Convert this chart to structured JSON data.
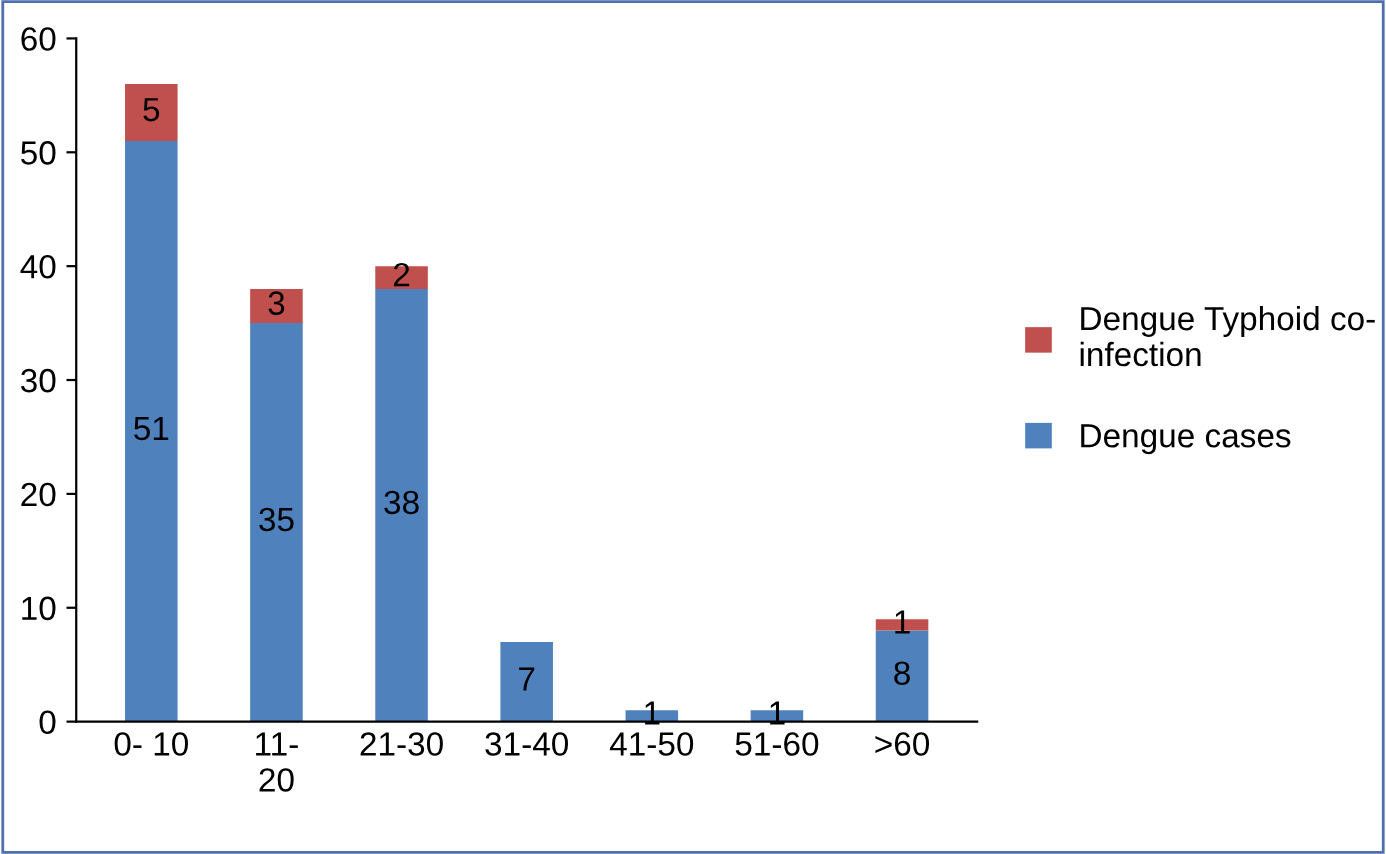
{
  "chart_data": {
    "type": "bar",
    "stacked": true,
    "categories": [
      "0- 10",
      "11-\n20",
      "21-30",
      "31-40",
      "41-50",
      "51-60",
      ">60"
    ],
    "series": [
      {
        "name": "Dengue cases",
        "color": "#4f81bd",
        "values": [
          51,
          35,
          38,
          7,
          1,
          1,
          8
        ],
        "value_labels": [
          "51",
          "35",
          "38",
          "7",
          "1",
          "1",
          "8"
        ]
      },
      {
        "name": "Dengue Typhoid co-\ninfection",
        "color": "#c0504d",
        "values": [
          5,
          3,
          2,
          0,
          0,
          0,
          1
        ],
        "value_labels": [
          "5",
          "3",
          "2",
          null,
          null,
          null,
          "1"
        ]
      }
    ],
    "ylim": [
      0,
      60
    ],
    "yticks": [
      0,
      10,
      20,
      30,
      40,
      50,
      60
    ],
    "grid": false,
    "legend": "right"
  }
}
